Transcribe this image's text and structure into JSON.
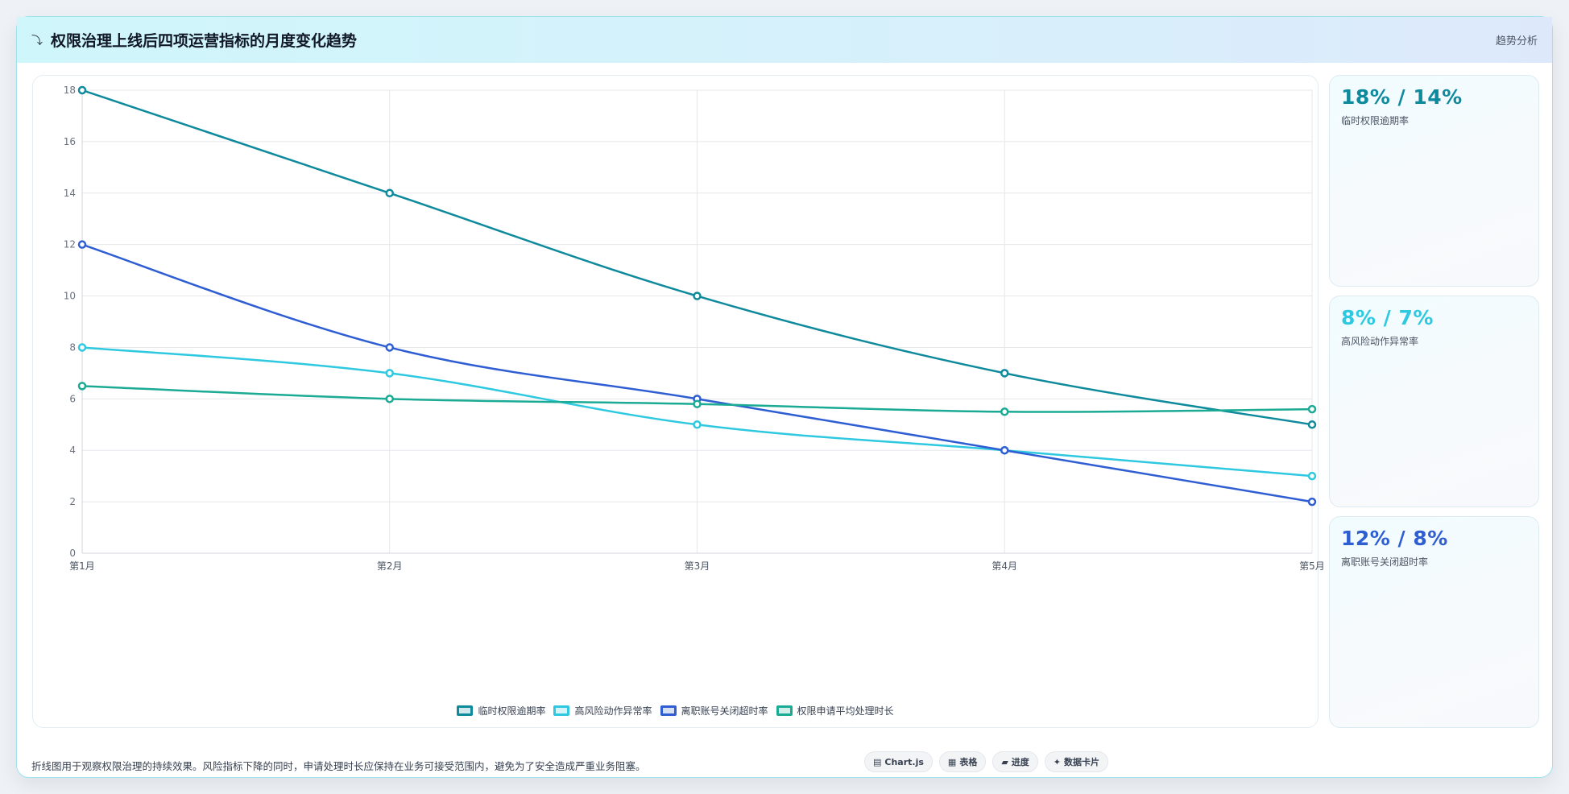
{
  "header": {
    "icon": "trend-line-icon",
    "title": "权限治理上线后四项运营指标的月度变化趋势",
    "tag": "趋势分析"
  },
  "chart_data": {
    "type": "line",
    "categories": [
      "第1月",
      "第2月",
      "第3月",
      "第4月",
      "第5月"
    ],
    "ylim": [
      0,
      18
    ],
    "yticks": [
      0,
      2,
      4,
      6,
      8,
      10,
      12,
      14,
      16,
      18
    ],
    "grid": true,
    "legend_position": "bottom",
    "series": [
      {
        "name": "临时权限逾期率",
        "color": "#0e8a9c",
        "values": [
          18,
          14,
          10,
          7,
          5
        ]
      },
      {
        "name": "高风险动作异常率",
        "color": "#2ec9e0",
        "values": [
          8,
          7,
          5,
          4,
          3
        ]
      },
      {
        "name": "离职账号关闭超时率",
        "color": "#2f5ed3",
        "values": [
          12,
          8,
          6,
          4,
          2
        ]
      },
      {
        "name": "权限申请平均处理时长",
        "color": "#1bab95",
        "values": [
          6.5,
          6,
          5.8,
          5.5,
          5.6
        ]
      }
    ]
  },
  "kpis": [
    {
      "value": "18% / 14%",
      "label": "临时权限逾期率",
      "color": "#0e8a9c"
    },
    {
      "value": "8% / 7%",
      "label": "高风险动作异常率",
      "color": "#2ec9e0"
    },
    {
      "value": "12% / 8%",
      "label": "离职账号关闭超时率",
      "color": "#2f5ed3"
    }
  ],
  "footer": {
    "note": "折线图用于观察权限治理的持续效果。风险指标下降的同时，申请处理时长应保持在业务可接受范围内，避免为了安全造成严重业务阻塞。",
    "chips": [
      {
        "icon": "▤",
        "label": "Chart.js"
      },
      {
        "icon": "▦",
        "label": "表格"
      },
      {
        "icon": "▰",
        "label": "进度"
      },
      {
        "icon": "✦",
        "label": "数据卡片"
      }
    ]
  }
}
